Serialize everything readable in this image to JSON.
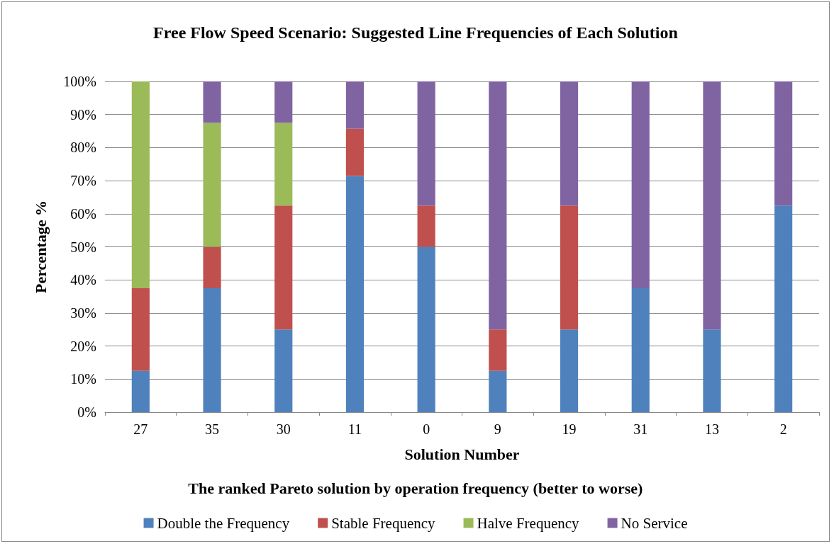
{
  "chart_data": {
    "type": "bar",
    "title": "Free Flow Speed Scenario: Suggested Line Frequencies of Each Solution",
    "xlabel": "Solution Number",
    "ylabel": "Percentage %",
    "annotations": [
      "The ranked Pareto solution by operation frequency (better to worse)"
    ],
    "categories": [
      "27",
      "35",
      "30",
      "11",
      "0",
      "9",
      "19",
      "31",
      "13",
      "2"
    ],
    "stacked": true,
    "series": [
      {
        "name": "Double the Frequency",
        "color": "#4f81bd",
        "values": [
          12.5,
          37.5,
          25,
          71.4,
          50,
          12.5,
          25,
          37.5,
          25,
          62.5
        ]
      },
      {
        "name": "Stable Frequency",
        "color": "#c0504d",
        "values": [
          25,
          12.5,
          37.5,
          14.3,
          12.5,
          12.5,
          37.5,
          0,
          0,
          0
        ]
      },
      {
        "name": "Halve Frequency",
        "color": "#9bbb59",
        "values": [
          62.5,
          37.5,
          25,
          0,
          0,
          0,
          0,
          0,
          0,
          0
        ]
      },
      {
        "name": "No Service",
        "color": "#8064a2",
        "values": [
          0,
          12.5,
          12.5,
          14.3,
          37.5,
          75,
          37.5,
          62.5,
          75,
          37.5
        ]
      }
    ],
    "ylim": [
      0,
      100
    ],
    "yticks": [
      {
        "value": 0,
        "label": "0%"
      },
      {
        "value": 10,
        "label": "10%"
      },
      {
        "value": 20,
        "label": "20%"
      },
      {
        "value": 30,
        "label": "30%"
      },
      {
        "value": 40,
        "label": "40%"
      },
      {
        "value": 50,
        "label": "50%"
      },
      {
        "value": 60,
        "label": "60%"
      },
      {
        "value": 70,
        "label": "70%"
      },
      {
        "value": 80,
        "label": "80%"
      },
      {
        "value": 90,
        "label": "90%"
      },
      {
        "value": 100,
        "label": "100%"
      }
    ],
    "grid": "y",
    "legend": "bottom"
  }
}
